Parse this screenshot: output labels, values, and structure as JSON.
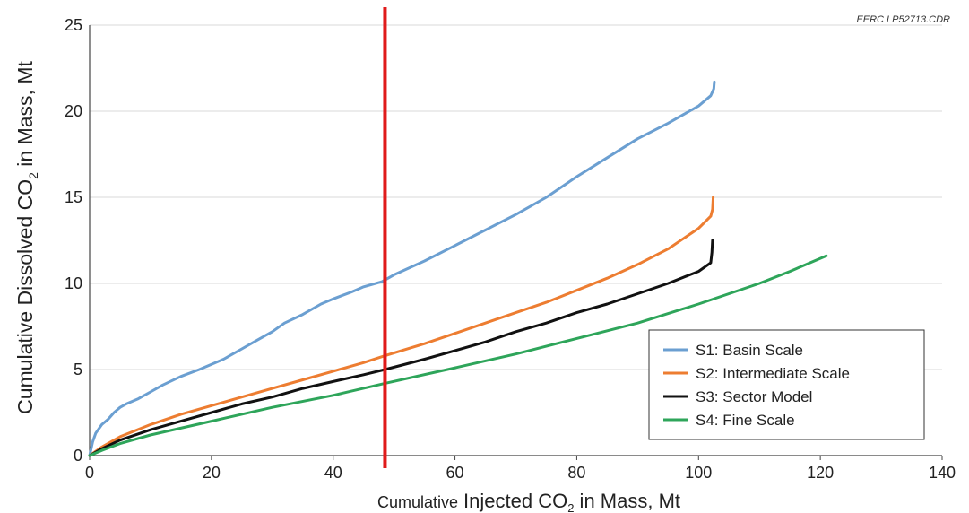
{
  "chart_data": {
    "type": "line",
    "note": "EERC LP52713.CDR",
    "xlabel_prefix": "Cumulative",
    "xlabel_main": "Injected CO",
    "xlabel_sub": "2",
    "xlabel_suffix": " in Mass, Mt",
    "ylabel_main": "Cumulative Dissolved CO",
    "ylabel_sub": "2",
    "ylabel_suffix": " in Mass, Mt",
    "xlim": [
      0,
      140
    ],
    "ylim": [
      0,
      25
    ],
    "xticks": [
      "0",
      "20",
      "40",
      "60",
      "80",
      "100",
      "120",
      "140"
    ],
    "yticks": [
      "0",
      "5",
      "10",
      "15",
      "20",
      "25"
    ],
    "grid": "horizontal",
    "legend_position": "bottom-right",
    "vertical_marker": {
      "x": 48.5,
      "color": "#e01b1b"
    },
    "series": [
      {
        "name": "S1: Basin Scale",
        "color": "#6b9fd1",
        "points": [
          [
            0,
            0
          ],
          [
            0.5,
            0.8
          ],
          [
            1,
            1.3
          ],
          [
            2,
            1.8
          ],
          [
            3,
            2.1
          ],
          [
            4,
            2.5
          ],
          [
            5,
            2.8
          ],
          [
            6,
            3.0
          ],
          [
            8,
            3.3
          ],
          [
            10,
            3.7
          ],
          [
            12,
            4.1
          ],
          [
            15,
            4.6
          ],
          [
            18,
            5.0
          ],
          [
            20,
            5.3
          ],
          [
            22,
            5.6
          ],
          [
            25,
            6.2
          ],
          [
            28,
            6.8
          ],
          [
            30,
            7.2
          ],
          [
            32,
            7.7
          ],
          [
            35,
            8.2
          ],
          [
            38,
            8.8
          ],
          [
            40,
            9.1
          ],
          [
            43,
            9.5
          ],
          [
            45,
            9.8
          ],
          [
            48,
            10.1
          ],
          [
            50,
            10.5
          ],
          [
            55,
            11.3
          ],
          [
            60,
            12.2
          ],
          [
            65,
            13.1
          ],
          [
            70,
            14.0
          ],
          [
            75,
            15.0
          ],
          [
            80,
            16.2
          ],
          [
            85,
            17.3
          ],
          [
            90,
            18.4
          ],
          [
            95,
            19.3
          ],
          [
            100,
            20.3
          ],
          [
            102,
            20.9
          ],
          [
            102.5,
            21.3
          ],
          [
            102.6,
            21.7
          ]
        ]
      },
      {
        "name": "S2: Intermediate Scale",
        "color": "#ed7d31",
        "points": [
          [
            0,
            0
          ],
          [
            2,
            0.5
          ],
          [
            5,
            1.1
          ],
          [
            10,
            1.8
          ],
          [
            15,
            2.4
          ],
          [
            20,
            2.9
          ],
          [
            25,
            3.4
          ],
          [
            30,
            3.9
          ],
          [
            35,
            4.4
          ],
          [
            40,
            4.9
          ],
          [
            45,
            5.4
          ],
          [
            48.5,
            5.8
          ],
          [
            55,
            6.5
          ],
          [
            60,
            7.1
          ],
          [
            65,
            7.7
          ],
          [
            70,
            8.3
          ],
          [
            75,
            8.9
          ],
          [
            80,
            9.6
          ],
          [
            85,
            10.3
          ],
          [
            90,
            11.1
          ],
          [
            95,
            12.0
          ],
          [
            100,
            13.2
          ],
          [
            102,
            13.9
          ],
          [
            102.3,
            14.3
          ],
          [
            102.4,
            15.0
          ]
        ]
      },
      {
        "name": "S3: Sector Model",
        "color": "#111111",
        "points": [
          [
            0,
            0
          ],
          [
            2,
            0.4
          ],
          [
            5,
            0.9
          ],
          [
            10,
            1.5
          ],
          [
            15,
            2.0
          ],
          [
            20,
            2.5
          ],
          [
            25,
            3.0
          ],
          [
            30,
            3.4
          ],
          [
            35,
            3.9
          ],
          [
            40,
            4.3
          ],
          [
            45,
            4.7
          ],
          [
            48.5,
            5.0
          ],
          [
            55,
            5.6
          ],
          [
            60,
            6.1
          ],
          [
            65,
            6.6
          ],
          [
            70,
            7.2
          ],
          [
            75,
            7.7
          ],
          [
            80,
            8.3
          ],
          [
            85,
            8.8
          ],
          [
            90,
            9.4
          ],
          [
            95,
            10.0
          ],
          [
            100,
            10.7
          ],
          [
            102,
            11.2
          ],
          [
            102.2,
            11.8
          ],
          [
            102.3,
            12.5
          ]
        ]
      },
      {
        "name": "S4: Fine Scale",
        "color": "#2ea55a",
        "points": [
          [
            0,
            0
          ],
          [
            2,
            0.3
          ],
          [
            5,
            0.7
          ],
          [
            10,
            1.2
          ],
          [
            20,
            2.0
          ],
          [
            30,
            2.8
          ],
          [
            40,
            3.5
          ],
          [
            48.5,
            4.2
          ],
          [
            60,
            5.1
          ],
          [
            70,
            5.9
          ],
          [
            80,
            6.8
          ],
          [
            90,
            7.7
          ],
          [
            100,
            8.8
          ],
          [
            110,
            10.0
          ],
          [
            115,
            10.7
          ],
          [
            121,
            11.6
          ]
        ]
      }
    ]
  }
}
